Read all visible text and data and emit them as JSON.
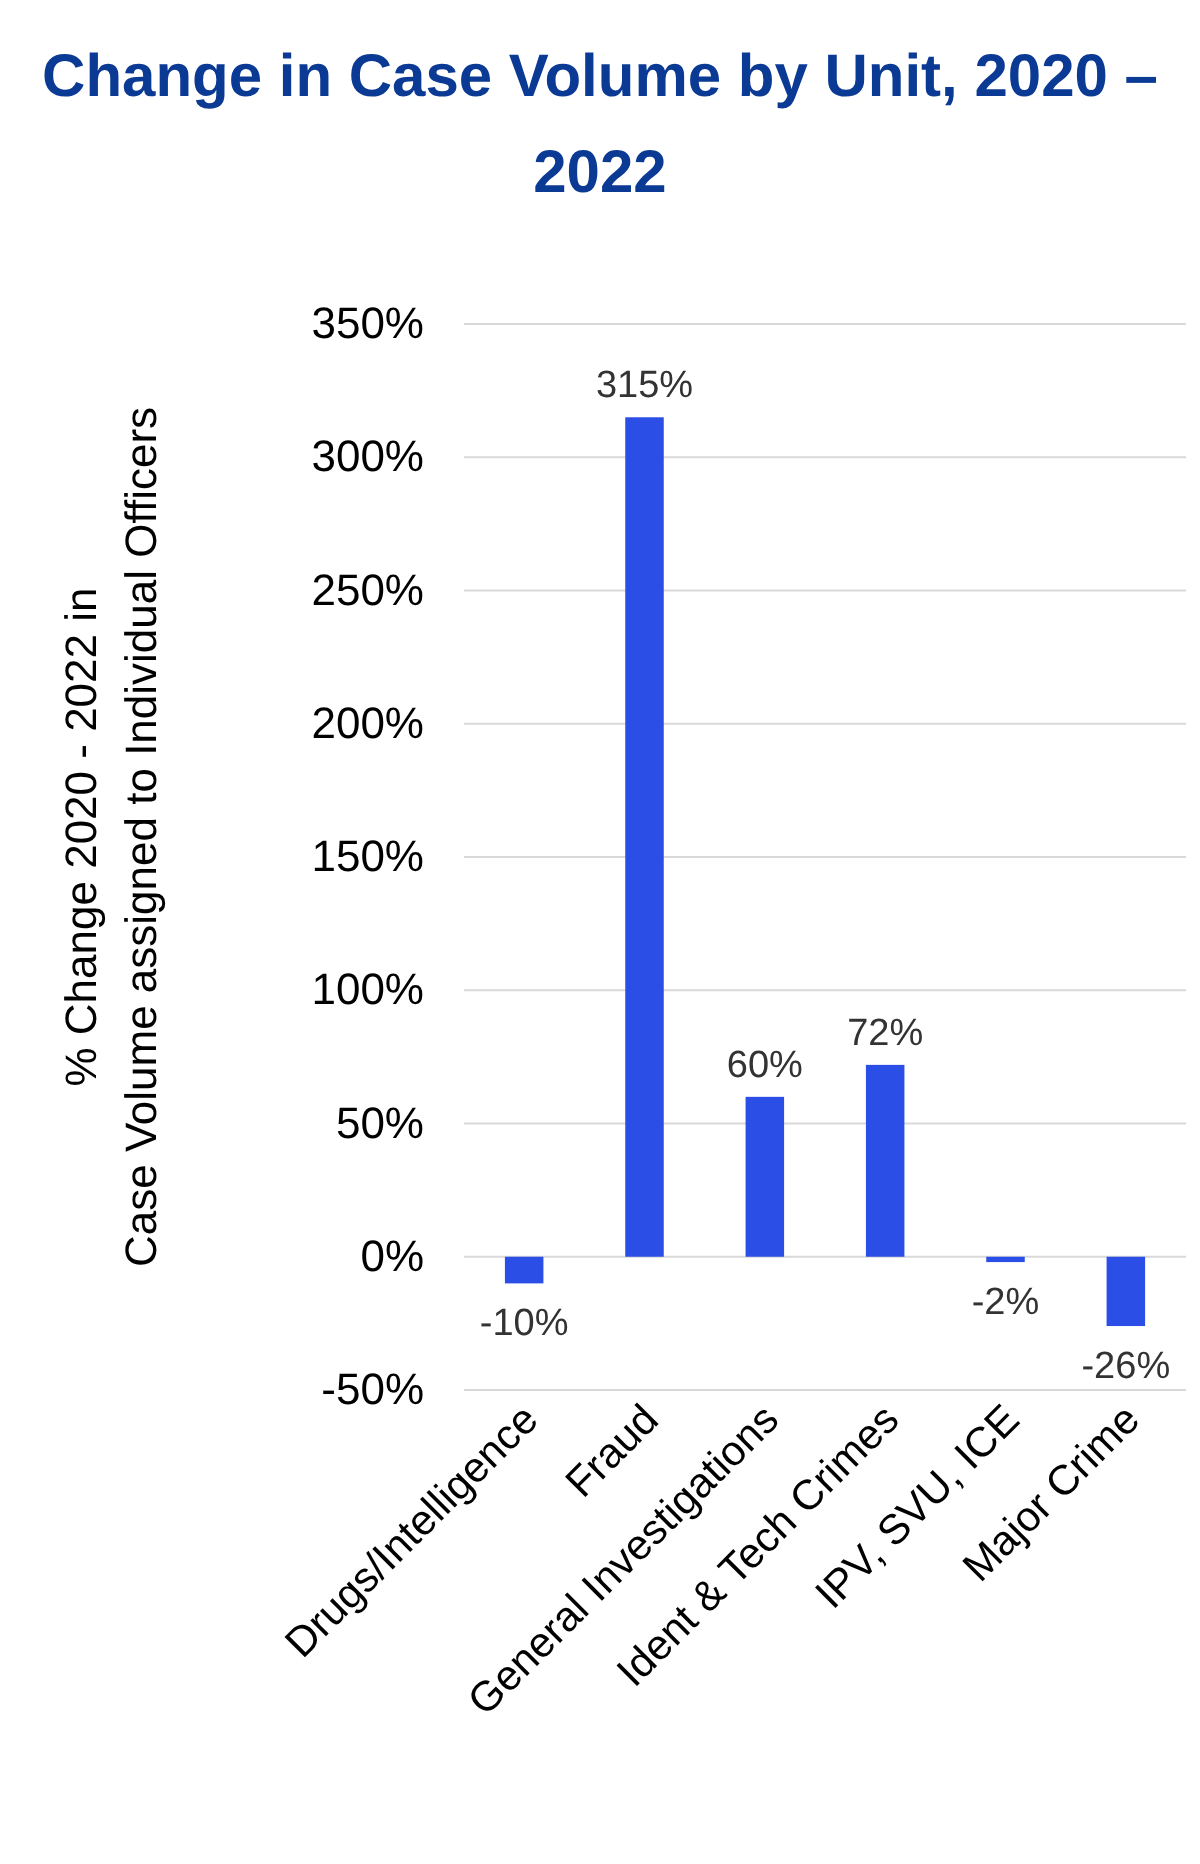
{
  "chart_data": {
    "type": "bar",
    "title": "Change in Case Volume by Unit, 2020 – 2022",
    "ylabel": "% Change 2020 - 2022 in Case Volume assigned to Individual Officers",
    "categories": [
      "Drugs/Intelligence",
      "Fraud",
      "General Investigations",
      "Ident & Tech Crimes",
      "IPV, SVU, ICE",
      "Major Crime"
    ],
    "values": [
      -10,
      315,
      60,
      72,
      -2,
      -26
    ],
    "value_labels": [
      "-10%",
      "315%",
      "60%",
      "72%",
      "-2%",
      "-26%"
    ],
    "color": "#2b4ee6",
    "ylim": [
      -50,
      350
    ],
    "yticks": [
      {
        "value": -50,
        "label": "-50%"
      },
      {
        "value": 0,
        "label": "0%"
      },
      {
        "value": 50,
        "label": "50%"
      },
      {
        "value": 100,
        "label": "100%"
      },
      {
        "value": 150,
        "label": "150%"
      },
      {
        "value": 200,
        "label": "200%"
      },
      {
        "value": 250,
        "label": "250%"
      },
      {
        "value": 300,
        "label": "300%"
      },
      {
        "value": 350,
        "label": "350%"
      }
    ],
    "grid": "y"
  }
}
